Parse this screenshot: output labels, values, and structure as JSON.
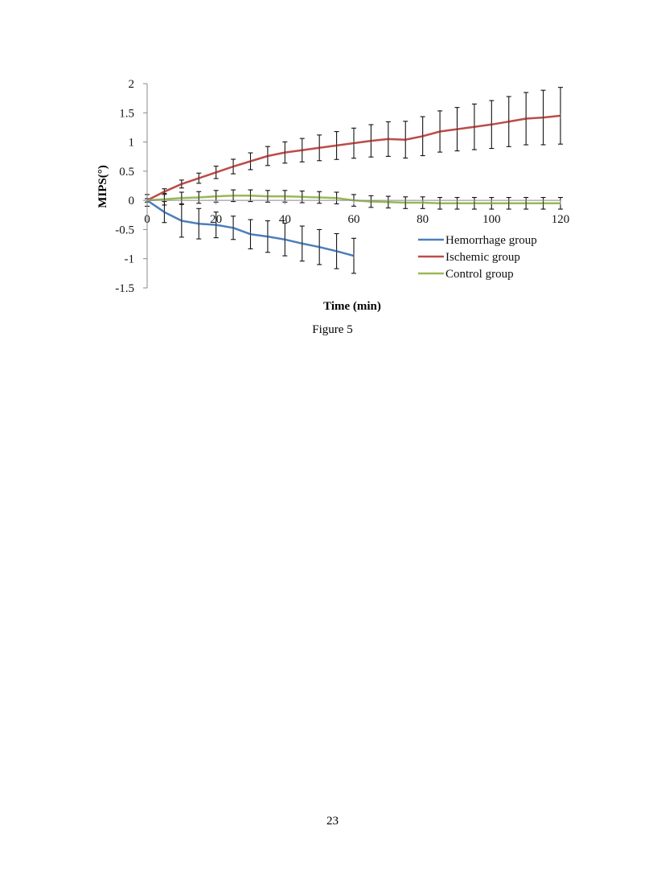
{
  "figure": {
    "caption": "Figure 5"
  },
  "page": {
    "number": "23"
  },
  "chart_data": {
    "type": "line",
    "xlabel": "Time (min)",
    "ylabel": "MIPS(°)",
    "xlim": [
      0,
      120
    ],
    "ylim": [
      -1.5,
      2
    ],
    "x_ticks": [
      0,
      20,
      40,
      60,
      80,
      100,
      120
    ],
    "x_tick_labels": [
      "0",
      "20",
      "40",
      "60",
      "80",
      "100",
      "120"
    ],
    "y_ticks": [
      -1.5,
      -1,
      -0.5,
      0,
      0.5,
      1,
      1.5,
      2
    ],
    "y_tick_labels": [
      "-1.5",
      "-1",
      "-0.5",
      "0",
      "0.5",
      "1",
      "1.5",
      "2"
    ],
    "grid": false,
    "legend_position": "bottom-right",
    "series": [
      {
        "name": "Hemorrhage group",
        "color": "#4a7ebb",
        "x": [
          0,
          5,
          10,
          15,
          20,
          25,
          30,
          35,
          40,
          45,
          50,
          55,
          60
        ],
        "y": [
          0,
          -0.2,
          -0.35,
          -0.4,
          -0.42,
          -0.47,
          -0.58,
          -0.62,
          -0.67,
          -0.74,
          -0.8,
          -0.87,
          -0.95
        ],
        "err": [
          0,
          0.18,
          0.28,
          0.26,
          0.22,
          0.2,
          0.25,
          0.27,
          0.28,
          0.3,
          0.3,
          0.3,
          0.3
        ]
      },
      {
        "name": "Ischemic group",
        "color": "#be4b48",
        "x": [
          0,
          5,
          10,
          15,
          20,
          25,
          30,
          35,
          40,
          45,
          50,
          55,
          60,
          65,
          70,
          75,
          80,
          85,
          90,
          95,
          100,
          105,
          110,
          115,
          120
        ],
        "y": [
          0,
          0.15,
          0.28,
          0.38,
          0.48,
          0.58,
          0.67,
          0.76,
          0.82,
          0.86,
          0.9,
          0.94,
          0.98,
          1.02,
          1.05,
          1.04,
          1.1,
          1.18,
          1.22,
          1.26,
          1.3,
          1.35,
          1.4,
          1.42,
          1.45
        ]
      },
      {
        "name": "Control group",
        "color": "#98b954",
        "x": [
          0,
          5,
          10,
          15,
          20,
          25,
          30,
          35,
          40,
          45,
          50,
          55,
          60,
          65,
          70,
          75,
          80,
          85,
          90,
          95,
          100,
          105,
          110,
          115,
          120
        ],
        "y": [
          0,
          0.02,
          0.04,
          0.05,
          0.07,
          0.08,
          0.08,
          0.07,
          0.07,
          0.06,
          0.05,
          0.04,
          0.0,
          -0.02,
          -0.03,
          -0.04,
          -0.04,
          -0.05,
          -0.05,
          -0.05,
          -0.05,
          -0.05,
          -0.05,
          -0.05,
          -0.05
        ]
      }
    ]
  }
}
